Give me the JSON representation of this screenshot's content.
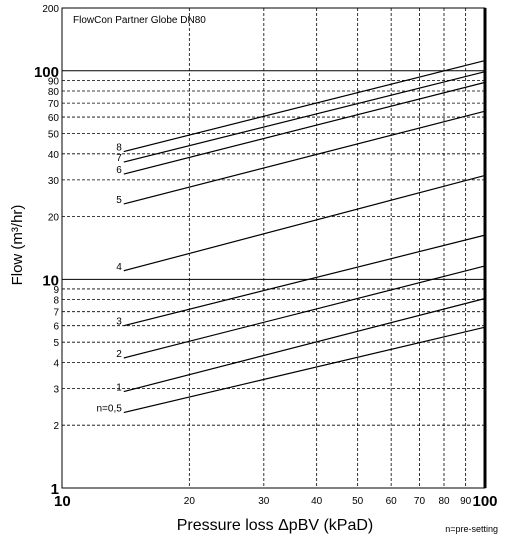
{
  "chart_data": {
    "type": "line",
    "title": "FlowCon Partner Globe DN80",
    "xlabel": "Pressure loss ΔpBV (kPaD)",
    "ylabel": "Flow (m³/hr)",
    "note": "n=pre-setting",
    "x_scale": "log",
    "y_scale": "log",
    "xlim": [
      10,
      100
    ],
    "ylim": [
      1,
      200
    ],
    "grid": true,
    "x_ticks": [
      {
        "value": 10,
        "label": "10",
        "major": true
      },
      {
        "value": 20,
        "label": "20",
        "major": false
      },
      {
        "value": 30,
        "label": "30",
        "major": false
      },
      {
        "value": 40,
        "label": "40",
        "major": false
      },
      {
        "value": 50,
        "label": "50",
        "major": false
      },
      {
        "value": 60,
        "label": "60",
        "major": false
      },
      {
        "value": 70,
        "label": "70",
        "major": false
      },
      {
        "value": 80,
        "label": "80",
        "major": false
      },
      {
        "value": 90,
        "label": "90",
        "major": false
      },
      {
        "value": 100,
        "label": "100",
        "major": true
      }
    ],
    "y_ticks": [
      {
        "value": 1,
        "label": "1",
        "major": true
      },
      {
        "value": 2,
        "label": "2",
        "major": false
      },
      {
        "value": 3,
        "label": "3",
        "major": false
      },
      {
        "value": 4,
        "label": "4",
        "major": false
      },
      {
        "value": 5,
        "label": "5",
        "major": false
      },
      {
        "value": 6,
        "label": "6",
        "major": false
      },
      {
        "value": 7,
        "label": "7",
        "major": false
      },
      {
        "value": 8,
        "label": "8",
        "major": false
      },
      {
        "value": 9,
        "label": "9",
        "major": false
      },
      {
        "value": 10,
        "label": "10",
        "major": true
      },
      {
        "value": 20,
        "label": "20",
        "major": false
      },
      {
        "value": 30,
        "label": "30",
        "major": false
      },
      {
        "value": 40,
        "label": "40",
        "major": false
      },
      {
        "value": 50,
        "label": "50",
        "major": false
      },
      {
        "value": 60,
        "label": "60",
        "major": false
      },
      {
        "value": 70,
        "label": "70",
        "major": false
      },
      {
        "value": 80,
        "label": "80",
        "major": false
      },
      {
        "value": 90,
        "label": "90",
        "major": false
      },
      {
        "value": 100,
        "label": "100",
        "major": true
      },
      {
        "value": 200,
        "label": "200",
        "major": false
      }
    ],
    "series": [
      {
        "name": "n=0,5",
        "x": [
          14,
          100
        ],
        "y": [
          2.3,
          5.9
        ]
      },
      {
        "name": "1",
        "x": [
          14,
          100
        ],
        "y": [
          2.9,
          8.1
        ]
      },
      {
        "name": "2",
        "x": [
          14,
          100
        ],
        "y": [
          4.2,
          11.6
        ]
      },
      {
        "name": "3",
        "x": [
          14,
          100
        ],
        "y": [
          6.0,
          16.3
        ]
      },
      {
        "name": "4",
        "x": [
          14,
          100
        ],
        "y": [
          11.0,
          31.5
        ]
      },
      {
        "name": "5",
        "x": [
          14,
          100
        ],
        "y": [
          23.0,
          64.0
        ]
      },
      {
        "name": "6",
        "x": [
          14,
          100
        ],
        "y": [
          32.0,
          88.0
        ]
      },
      {
        "name": "7",
        "x": [
          14,
          100
        ],
        "y": [
          36.5,
          99.0
        ]
      },
      {
        "name": "8",
        "x": [
          14,
          100
        ],
        "y": [
          41.0,
          112.0
        ]
      }
    ]
  }
}
